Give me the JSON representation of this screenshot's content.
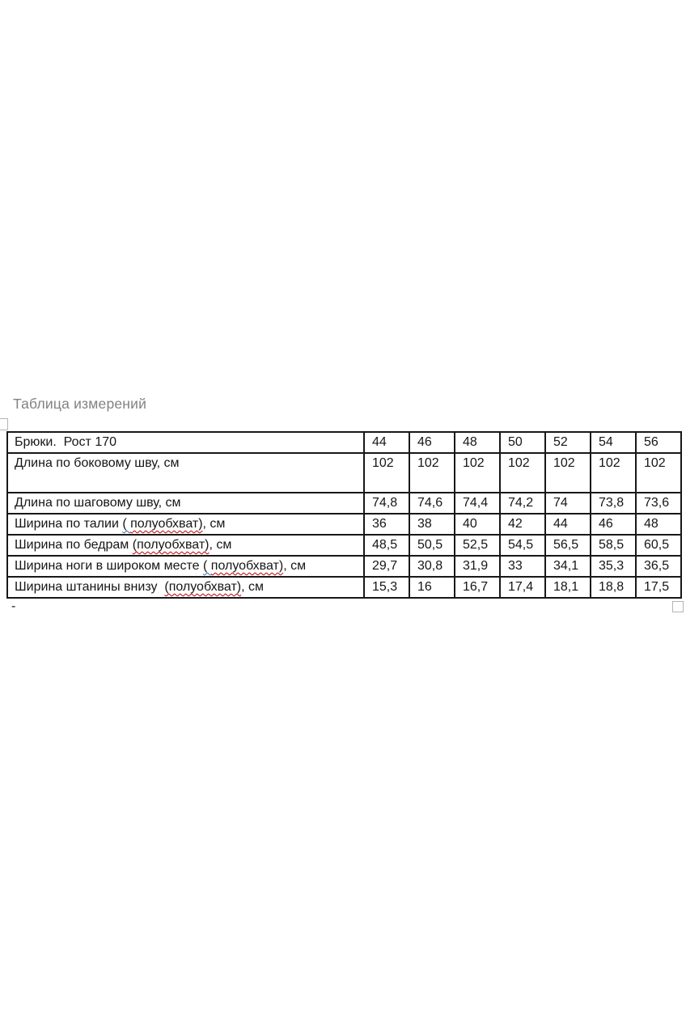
{
  "page": {
    "title": "Таблица измерений",
    "trailing_dash": "-"
  },
  "colors": {
    "caption_gray": "#828282",
    "table_border": "#181818",
    "text": "#161616",
    "spellcheck_red": "#c00000",
    "grammar_blue": "#2e74b5",
    "handle_gray": "#b4b4b4"
  },
  "table": {
    "size_columns": [
      "44",
      "46",
      "48",
      "50",
      "52",
      "54",
      "56"
    ],
    "rows": [
      {
        "tall": false,
        "label_segments": [
          {
            "text": "Брюки.  Рост 170",
            "mark": "none"
          }
        ],
        "values": [
          "44",
          "46",
          "48",
          "50",
          "52",
          "54",
          "56"
        ]
      },
      {
        "tall": true,
        "label_segments": [
          {
            "text": "Длина по боковому шву, см",
            "mark": "none"
          }
        ],
        "values": [
          "102",
          "102",
          "102",
          "102",
          "102",
          "102",
          "102"
        ]
      },
      {
        "tall": false,
        "label_segments": [
          {
            "text": "Длина по шаговому шву, см",
            "mark": "none"
          }
        ],
        "values": [
          "74,8",
          "74,6",
          "74,4",
          "74,2",
          "74",
          "73,8",
          "73,6"
        ]
      },
      {
        "tall": false,
        "label_segments": [
          {
            "text": "Ширина по талии ",
            "mark": "none"
          },
          {
            "text": "( ",
            "mark": "blue"
          },
          {
            "text": "полуобхват)",
            "mark": "red"
          },
          {
            "text": ", см",
            "mark": "none"
          }
        ],
        "values": [
          "36",
          "38",
          "40",
          "42",
          "44",
          "46",
          "48"
        ]
      },
      {
        "tall": false,
        "label_segments": [
          {
            "text": "Ширина по бедрам ",
            "mark": "none"
          },
          {
            "text": "(полуобхват)",
            "mark": "red"
          },
          {
            "text": ", см",
            "mark": "none"
          }
        ],
        "values": [
          "48,5",
          "50,5",
          "52,5",
          "54,5",
          "56,5",
          "58,5",
          "60,5"
        ]
      },
      {
        "tall": false,
        "label_segments": [
          {
            "text": "Ширина ноги в широком месте ",
            "mark": "none"
          },
          {
            "text": "( ",
            "mark": "blue"
          },
          {
            "text": "полуобхват)",
            "mark": "red"
          },
          {
            "text": ", см",
            "mark": "none"
          }
        ],
        "values": [
          "29,7",
          "30,8",
          "31,9",
          "33",
          "34,1",
          "35,3",
          "36,5"
        ]
      },
      {
        "tall": false,
        "label_segments": [
          {
            "text": "Ширина штанины внизу  ",
            "mark": "none"
          },
          {
            "text": "(полуобхват)",
            "mark": "red"
          },
          {
            "text": ", см",
            "mark": "none"
          }
        ],
        "values": [
          "15,3",
          "16",
          "16,7",
          "17,4",
          "18,1",
          "18,8",
          "17,5"
        ]
      }
    ]
  }
}
